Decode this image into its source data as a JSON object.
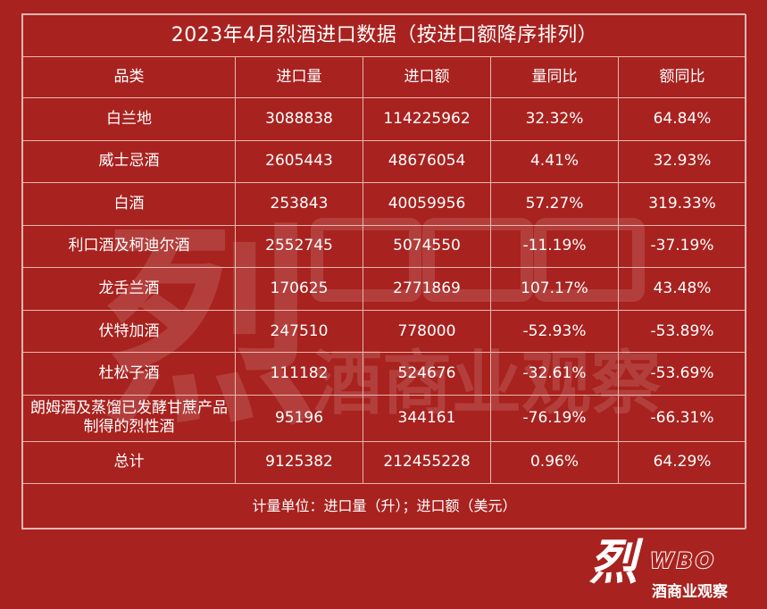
{
  "table": {
    "title": "2023年4月烈酒进口数据（按进口额降序排列）",
    "headers": [
      "品类",
      "进口量",
      "进口额",
      "量同比",
      "额同比"
    ],
    "rows": [
      [
        "白兰地",
        "3088838",
        "114225962",
        "32.32%",
        "64.84%"
      ],
      [
        "威士忌酒",
        "2605443",
        "48676054",
        "4.41%",
        "32.93%"
      ],
      [
        "白酒",
        "253843",
        "40059956",
        "57.27%",
        "319.33%"
      ],
      [
        "利口酒及柯迪尔酒",
        "2552745",
        "5074550",
        "-11.19%",
        "-37.19%"
      ],
      [
        "龙舌兰酒",
        "170625",
        "2771869",
        "107.17%",
        "43.48%"
      ],
      [
        "伏特加酒",
        "247510",
        "778000",
        "-52.93%",
        "-53.89%"
      ],
      [
        "杜松子酒",
        "111182",
        "524676",
        "-32.61%",
        "-53.69%"
      ],
      [
        "朗姆酒及蒸馏已发酵甘蔗产品制得的烈性酒",
        "95196",
        "344161",
        "-76.19%",
        "-66.31%"
      ],
      [
        "总计",
        "9125382",
        "212455228",
        "0.96%",
        "64.29%"
      ]
    ],
    "note": "计量单位：进口量（升）；进口额（美元）"
  },
  "watermark": {
    "text": "烈酒商业观察"
  },
  "logo": {
    "mark": "烈",
    "wordmark": "WBO",
    "subtitle": "酒商业观察"
  },
  "colors": {
    "background": "#a8221f",
    "text": "#ffffff",
    "grid": "#e9b7b2"
  }
}
